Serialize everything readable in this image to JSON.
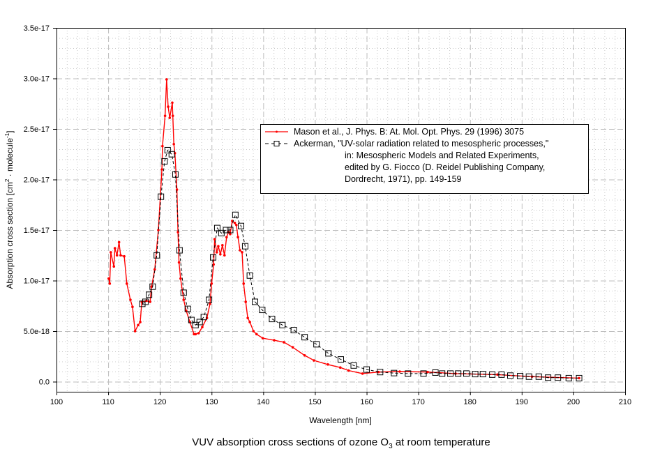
{
  "chart_data": {
    "type": "line",
    "title_main": "VUV absorption cross sections of ozone O",
    "title_sub": "3",
    "title_end": " at room temperature",
    "xlabel": "Wavelength [nm]",
    "ylabel_parts": {
      "a": "Absorption cross section [cm",
      "sup1": "2",
      "b": " · molecule",
      "sup2": "-1",
      "c": "]"
    },
    "xlim": [
      100,
      210
    ],
    "ylim": [
      -1e-18,
      3.5e-17
    ],
    "y_unit_scale": 1e-18,
    "x_ticks": [
      "100",
      "110",
      "120",
      "130",
      "140",
      "150",
      "160",
      "170",
      "180",
      "190",
      "200",
      "210"
    ],
    "y_ticks": [
      "0.0",
      "5.0e-18",
      "1.0e-17",
      "1.5e-17",
      "2.0e-17",
      "2.5e-17",
      "3.0e-17",
      "3.5e-17"
    ],
    "grid": true,
    "legend_placement": "center-right",
    "series": [
      {
        "name": "Mason et al., J. Phys. B: At. Mol. Opt. Phys. 29 (1996) 3075",
        "color": "#ff0000",
        "style": "solid-dots",
        "x": [
          110.1,
          110.3,
          110.5,
          111.1,
          111.3,
          111.7,
          112.1,
          112.4,
          113.1,
          113.6,
          114.3,
          114.7,
          115.2,
          115.8,
          116.2,
          116.5,
          117.4,
          118.1,
          118.4,
          119.0,
          119.7,
          120.4,
          120.5,
          121.0,
          121.3,
          121.6,
          121.9,
          122.4,
          122.5,
          122.7,
          122.9,
          123.3,
          123.5,
          123.7,
          124.0,
          124.6,
          125.1,
          125.8,
          126.6,
          126.9,
          127.5,
          128.2,
          129.1,
          129.7,
          130.0,
          130.4,
          130.6,
          131.0,
          131.3,
          131.7,
          132.1,
          132.5,
          132.9,
          133.3,
          133.6,
          134.0,
          134.5,
          134.8,
          135.1,
          135.5,
          135.9,
          136.2,
          136.6,
          137.0,
          137.4,
          138.1,
          138.7,
          139.9,
          142.1,
          144.0,
          145.7,
          148.0,
          149.8,
          152.5,
          154.9,
          156.5,
          159.2,
          162.3,
          166.4,
          171.8,
          177.2,
          185.3,
          192.0,
          201.1
        ],
        "y": [
          10.2,
          9.7,
          12.8,
          11.4,
          13.2,
          12.5,
          13.8,
          12.5,
          12.4,
          9.7,
          8.1,
          7.4,
          5.0,
          5.6,
          5.9,
          7.9,
          8.0,
          7.9,
          9.4,
          11.1,
          15.0,
          21.0,
          23.3,
          26.3,
          29.9,
          27.2,
          26.1,
          27.6,
          26.3,
          23.5,
          22.6,
          19.0,
          14.8,
          11.8,
          10.2,
          8.1,
          7.0,
          5.9,
          4.7,
          4.7,
          4.8,
          5.4,
          6.3,
          7.7,
          9.7,
          11.6,
          14.1,
          12.8,
          13.4,
          12.6,
          13.5,
          12.5,
          14.3,
          14.8,
          14.6,
          15.9,
          15.7,
          15.5,
          14.3,
          13.0,
          12.8,
          9.7,
          7.9,
          6.3,
          5.9,
          5.0,
          4.7,
          4.3,
          4.1,
          3.9,
          3.4,
          2.6,
          2.1,
          1.7,
          1.4,
          1.1,
          0.8,
          0.95,
          1.0,
          0.95,
          0.8,
          0.7,
          0.5,
          0.35
        ]
      },
      {
        "name": "Ackerman, \"UV-solar radiation related to mesospheric processes,\"",
        "name_lines": [
          "in: Mesospheric Models and Related Experiments,",
          "edited by G. Fiocco (D. Reidel Publishing Company,",
          "Dordrecht, 1971), pp. 149-159"
        ],
        "color": "#000000",
        "style": "dashed-open-squares",
        "x": [
          116.6,
          117.2,
          117.9,
          118.6,
          119.4,
          120.2,
          120.9,
          121.5,
          122.3,
          123.0,
          123.8,
          124.6,
          125.4,
          126.1,
          126.9,
          127.7,
          128.5,
          129.5,
          130.3,
          131.1,
          131.9,
          132.8,
          133.6,
          134.6,
          135.7,
          136.5,
          137.4,
          138.4,
          139.8,
          141.7,
          143.7,
          145.9,
          148.0,
          150.3,
          152.6,
          155.0,
          157.5,
          160.0,
          162.6,
          165.3,
          168.0,
          171.0,
          173.3,
          174.6,
          176.2,
          177.7,
          179.3,
          181.0,
          182.5,
          184.3,
          186.1,
          187.8,
          189.7,
          191.4,
          193.3,
          195.1,
          197.0,
          199.1,
          201.1
        ],
        "y": [
          7.7,
          7.9,
          8.6,
          9.4,
          12.5,
          18.3,
          21.8,
          22.9,
          22.5,
          20.5,
          13.0,
          8.8,
          7.2,
          6.1,
          5.6,
          5.9,
          6.4,
          8.1,
          12.3,
          15.2,
          14.7,
          15.0,
          15.0,
          16.5,
          15.4,
          13.4,
          10.5,
          7.9,
          7.1,
          6.2,
          5.6,
          5.1,
          4.4,
          3.7,
          2.8,
          2.2,
          1.6,
          1.2,
          0.95,
          0.85,
          0.8,
          0.8,
          0.9,
          0.8,
          0.8,
          0.8,
          0.8,
          0.75,
          0.75,
          0.7,
          0.7,
          0.6,
          0.55,
          0.5,
          0.5,
          0.4,
          0.4,
          0.35,
          0.35
        ]
      }
    ]
  }
}
